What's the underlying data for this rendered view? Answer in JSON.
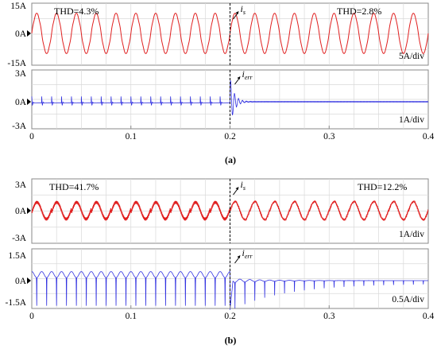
{
  "chart_data": [
    {
      "type": "line",
      "panel": "a",
      "caption": "(a)",
      "x_ticks": [
        "0",
        "0.1",
        "0.2",
        "0.3",
        "0.4"
      ],
      "xlim": [
        0,
        0.4
      ],
      "switch_time": 0.2,
      "subplots": [
        {
          "name": "is",
          "annotation_main": "i",
          "annotation_sub": "s",
          "color": "#e02020",
          "y_ticks": [
            "15A",
            "0A",
            "-15A"
          ],
          "ylim": [
            -15,
            15
          ],
          "scale_label": "5A/div",
          "thd_before": "THD=4.3%",
          "thd_after": "THD=2.8%",
          "frequency_hz": 50,
          "amplitude_A": 13,
          "harmonic_ratio_before": 0.04,
          "harmonic_ratio_after": 0.025
        },
        {
          "name": "ierr",
          "annotation_main": "i",
          "annotation_sub": "err",
          "color": "#3030e0",
          "y_ticks": [
            "3A",
            "0A",
            "-3A"
          ],
          "ylim": [
            -3,
            3
          ],
          "scale_label": "1A/div",
          "pulse_amplitude_before_A": 0.6,
          "transient_peak_A": 2.3,
          "transient_trough_A": -2.3
        }
      ]
    },
    {
      "type": "line",
      "panel": "b",
      "caption": "(b)",
      "x_ticks": [
        "0",
        "0.1",
        "0.2",
        "0.3",
        "0.4"
      ],
      "xlim": [
        0,
        0.4
      ],
      "switch_time": 0.2,
      "subplots": [
        {
          "name": "is",
          "annotation_main": "i",
          "annotation_sub": "s",
          "color": "#e02020",
          "y_ticks": [
            "3A",
            "0A",
            "-3A"
          ],
          "ylim": [
            -3,
            3
          ],
          "scale_label": "1A/div",
          "thd_before": "THD=41.7%",
          "thd_after": "THD=12.2%",
          "frequency_hz": 50,
          "amplitude_A": 1.6,
          "harmonic_ratio_before": 0.4,
          "harmonic_ratio_after": 0.12
        },
        {
          "name": "ierr",
          "annotation_main": "i",
          "annotation_sub": "err",
          "color": "#3030e0",
          "y_ticks": [
            "1.5A",
            "0A",
            "-1.5A"
          ],
          "ylim": [
            -1.5,
            1.5
          ],
          "scale_label": "0.5A/div",
          "pulse_amplitude_before_A": 1.4,
          "pulse_amplitude_after_A": 0.25,
          "baseline_offset_A": 0.3
        }
      ]
    }
  ]
}
